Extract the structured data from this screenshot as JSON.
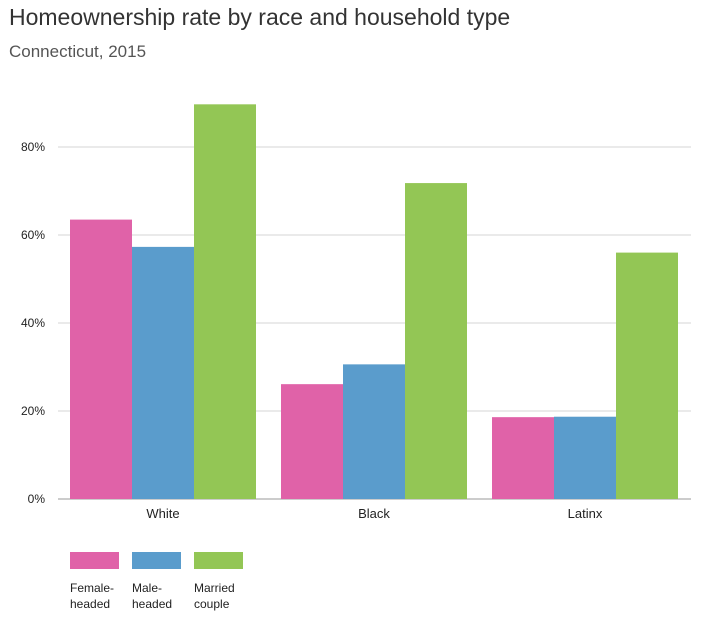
{
  "title": "Homeownership rate by race and household type",
  "subtitle": "Connecticut, 2015",
  "chart_data": {
    "type": "bar",
    "title": "Homeownership rate by race and household type",
    "subtitle": "Connecticut, 2015",
    "categories": [
      "White",
      "Black",
      "Latinx"
    ],
    "series": [
      {
        "name": "Female-headed",
        "label_lines": [
          "Female-",
          "headed"
        ],
        "color": "#e062a8",
        "values": [
          63.5,
          26.1,
          18.6
        ]
      },
      {
        "name": "Male-headed",
        "label_lines": [
          "Male-",
          "headed"
        ],
        "color": "#5a9ccc",
        "values": [
          57.3,
          30.6,
          18.7
        ]
      },
      {
        "name": "Married couple",
        "label_lines": [
          "Married",
          "couple"
        ],
        "color": "#93c655",
        "values": [
          89.7,
          71.8,
          56.0
        ]
      }
    ],
    "ylim": [
      0,
      90
    ],
    "yticks": [
      0,
      20,
      40,
      60,
      80
    ],
    "ytick_labels": [
      "0%",
      "20%",
      "40%",
      "60%",
      "80%"
    ],
    "grid": true,
    "legend_position": "bottom-left",
    "xlabel": "",
    "ylabel": ""
  }
}
